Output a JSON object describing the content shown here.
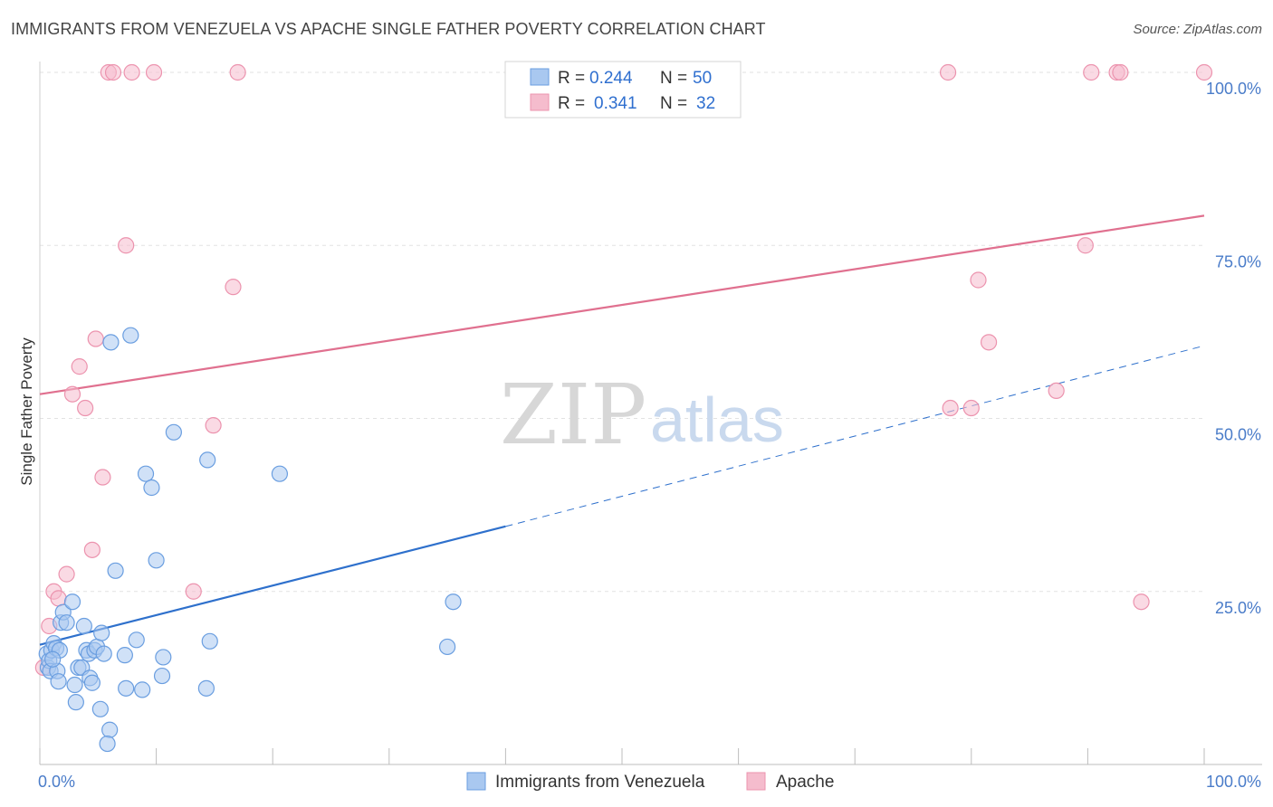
{
  "title": "IMMIGRANTS FROM VENEZUELA VS APACHE SINGLE FATHER POVERTY CORRELATION CHART",
  "source": "Source: ZipAtlas.com",
  "watermark": {
    "zip": "ZIP",
    "atlas": "atlas"
  },
  "colors": {
    "blue_fill": "#a9c8f0",
    "blue_stroke": "#6a9ee0",
    "blue_line": "#2e70cc",
    "pink_fill": "#f5bccd",
    "pink_stroke": "#ec93ae",
    "pink_line": "#e0708f",
    "grid": "#e2e2e2",
    "tick": "#4a7cc9"
  },
  "legend": {
    "r_label": "R =",
    "n_label": "N =",
    "rows": [
      {
        "r": "0.244",
        "n": "50"
      },
      {
        "r": "0.341",
        "n": "32"
      }
    ]
  },
  "bottom_legend": [
    "Immigrants from Venezuela",
    "Apache"
  ],
  "chart_data": {
    "type": "scatter",
    "title": "IMMIGRANTS FROM VENEZUELA VS APACHE SINGLE FATHER POVERTY CORRELATION CHART",
    "xlabel": "",
    "ylabel": "Single Father Poverty",
    "xlim": [
      0,
      100
    ],
    "ylim": [
      0,
      100
    ],
    "x_tick_labels": [
      "0.0%",
      "100.0%"
    ],
    "y_ticks": [
      25,
      50,
      75,
      100
    ],
    "y_tick_labels": [
      "25.0%",
      "50.0%",
      "75.0%",
      "100.0%"
    ],
    "grid": true,
    "legend_position": "top-center",
    "series": [
      {
        "name": "Immigrants from Venezuela",
        "points": [
          [
            0.6,
            16.0
          ],
          [
            0.7,
            14.0
          ],
          [
            0.8,
            15.0
          ],
          [
            0.9,
            13.5
          ],
          [
            1.0,
            16.5
          ],
          [
            1.2,
            17.5
          ],
          [
            1.4,
            16.8
          ],
          [
            1.5,
            13.5
          ],
          [
            1.6,
            12.0
          ],
          [
            1.7,
            16.5
          ],
          [
            1.8,
            20.5
          ],
          [
            2.0,
            22.0
          ],
          [
            2.3,
            20.5
          ],
          [
            2.8,
            23.5
          ],
          [
            3.0,
            11.5
          ],
          [
            3.1,
            9.0
          ],
          [
            3.3,
            14.0
          ],
          [
            3.6,
            14.0
          ],
          [
            3.8,
            20.0
          ],
          [
            4.0,
            16.5
          ],
          [
            4.2,
            16.0
          ],
          [
            4.3,
            12.5
          ],
          [
            4.5,
            11.8
          ],
          [
            4.7,
            16.5
          ],
          [
            4.9,
            17.0
          ],
          [
            5.2,
            8.0
          ],
          [
            5.3,
            19.0
          ],
          [
            5.5,
            16.0
          ],
          [
            6.0,
            5.0
          ],
          [
            6.1,
            61.0
          ],
          [
            6.5,
            28.0
          ],
          [
            7.3,
            15.8
          ],
          [
            7.4,
            11.0
          ],
          [
            7.8,
            62.0
          ],
          [
            8.3,
            18.0
          ],
          [
            8.8,
            10.8
          ],
          [
            9.1,
            42.0
          ],
          [
            9.6,
            40.0
          ],
          [
            10.0,
            29.5
          ],
          [
            10.5,
            12.8
          ],
          [
            10.6,
            15.5
          ],
          [
            11.5,
            48.0
          ],
          [
            14.3,
            11.0
          ],
          [
            14.4,
            44.0
          ],
          [
            14.6,
            17.8
          ],
          [
            20.6,
            42.0
          ],
          [
            35.0,
            17.0
          ],
          [
            35.5,
            23.5
          ],
          [
            5.8,
            3.0
          ],
          [
            1.1,
            15.2
          ]
        ],
        "trend": {
          "x": [
            0,
            40
          ],
          "y": [
            17.3,
            34.4
          ],
          "dashed_extension": {
            "x": [
              40,
              100
            ],
            "y": [
              34.4,
              60.5
            ]
          }
        }
      },
      {
        "name": "Apache",
        "points": [
          [
            0.3,
            14.0
          ],
          [
            0.8,
            20.0
          ],
          [
            1.2,
            25.0
          ],
          [
            1.6,
            24.0
          ],
          [
            2.3,
            27.5
          ],
          [
            2.8,
            53.5
          ],
          [
            3.4,
            57.5
          ],
          [
            3.9,
            51.5
          ],
          [
            4.5,
            31.0
          ],
          [
            4.8,
            61.5
          ],
          [
            5.4,
            41.5
          ],
          [
            5.9,
            100
          ],
          [
            6.3,
            100
          ],
          [
            7.4,
            75.0
          ],
          [
            7.9,
            100
          ],
          [
            9.8,
            100
          ],
          [
            13.2,
            25.0
          ],
          [
            14.9,
            49.0
          ],
          [
            16.6,
            69.0
          ],
          [
            17.0,
            100
          ],
          [
            78.0,
            100
          ],
          [
            78.2,
            51.5
          ],
          [
            80.0,
            51.5
          ],
          [
            80.6,
            70.0
          ],
          [
            81.5,
            61.0
          ],
          [
            87.3,
            54.0
          ],
          [
            89.8,
            75.0
          ],
          [
            90.3,
            100
          ],
          [
            92.5,
            100
          ],
          [
            92.8,
            100
          ],
          [
            94.6,
            23.5
          ],
          [
            100,
            100
          ]
        ],
        "trend": {
          "x": [
            0,
            100
          ],
          "y": [
            53.5,
            79.3
          ]
        }
      }
    ]
  }
}
